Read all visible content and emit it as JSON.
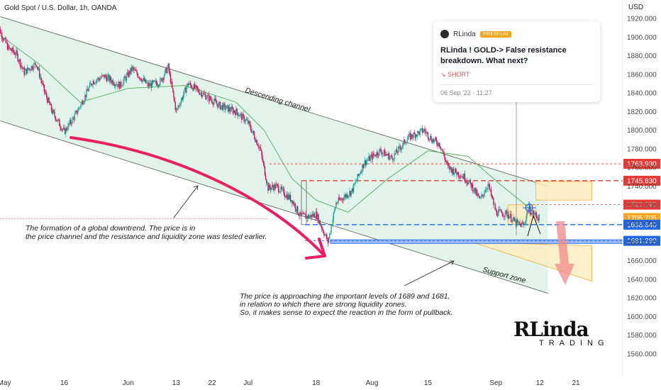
{
  "header": {
    "title": "Gold Spot / U.S. Dollar, 1h, OANDA",
    "currency": "USD"
  },
  "idea_card": {
    "author": "RLinda",
    "badge": "PREMIUM",
    "title": "RLinda ! GOLD-> False resistance breakdown. What next?",
    "signal": "↘ SHORT",
    "timestamp": "06 Sep '22 · 11:27"
  },
  "logo": {
    "main": "RLinda",
    "sub": "TRADING"
  },
  "colors": {
    "up": "#26a69a",
    "down": "#c2185b",
    "channel_fill": "#c8ead9",
    "ma": "#4caf50",
    "red_level": "#e53935",
    "blue_level": "#1e66e6",
    "arrow": "#e91e63",
    "orange": "#f5a623"
  },
  "chart_data": {
    "type": "candlestick",
    "symbol": "XAUUSD",
    "timeframe": "1h",
    "ylim": [
      1555,
      1930
    ],
    "y_ticks": [
      1920,
      1900,
      1880,
      1860,
      1840,
      1820,
      1800,
      1780,
      1760,
      1740,
      1720,
      1700,
      1680,
      1660,
      1640,
      1620,
      1600,
      1580,
      1560
    ],
    "x_ticks": [
      {
        "label": "May",
        "date": "2022-05-01"
      },
      {
        "label": "16",
        "date": "2022-05-16"
      },
      {
        "label": "Jun",
        "date": "2022-06-01"
      },
      {
        "label": "13",
        "date": "2022-06-13"
      },
      {
        "label": "22",
        "date": "2022-06-22"
      },
      {
        "label": "Jul",
        "date": "2022-07-01"
      },
      {
        "label": "18",
        "date": "2022-07-18"
      },
      {
        "label": "Aug",
        "date": "2022-08-01"
      },
      {
        "label": "15",
        "date": "2022-08-15"
      },
      {
        "label": "Sep",
        "date": "2022-09-01"
      },
      {
        "label": "12",
        "date": "2022-09-12"
      },
      {
        "label": "21",
        "date": "2022-09-21"
      }
    ],
    "price_path": [
      {
        "date": "2022-04-29",
        "price": 1915
      },
      {
        "date": "2022-05-02",
        "price": 1888
      },
      {
        "date": "2022-05-04",
        "price": 1882
      },
      {
        "date": "2022-05-06",
        "price": 1862
      },
      {
        "date": "2022-05-09",
        "price": 1872
      },
      {
        "date": "2022-05-11",
        "price": 1842
      },
      {
        "date": "2022-05-13",
        "price": 1820
      },
      {
        "date": "2022-05-16",
        "price": 1798
      },
      {
        "date": "2022-05-19",
        "price": 1818
      },
      {
        "date": "2022-05-23",
        "price": 1852
      },
      {
        "date": "2022-05-26",
        "price": 1858
      },
      {
        "date": "2022-05-30",
        "price": 1848
      },
      {
        "date": "2022-06-02",
        "price": 1866
      },
      {
        "date": "2022-06-06",
        "price": 1848
      },
      {
        "date": "2022-06-09",
        "price": 1852
      },
      {
        "date": "2022-06-11",
        "price": 1868
      },
      {
        "date": "2022-06-13",
        "price": 1820
      },
      {
        "date": "2022-06-16",
        "price": 1850
      },
      {
        "date": "2022-06-20",
        "price": 1838
      },
      {
        "date": "2022-06-24",
        "price": 1826
      },
      {
        "date": "2022-06-28",
        "price": 1820
      },
      {
        "date": "2022-07-01",
        "price": 1808
      },
      {
        "date": "2022-07-04",
        "price": 1780
      },
      {
        "date": "2022-07-06",
        "price": 1738
      },
      {
        "date": "2022-07-08",
        "price": 1740
      },
      {
        "date": "2022-07-12",
        "price": 1725
      },
      {
        "date": "2022-07-14",
        "price": 1708
      },
      {
        "date": "2022-07-16",
        "price": 1707
      },
      {
        "date": "2022-07-18",
        "price": 1710
      },
      {
        "date": "2022-07-21",
        "price": 1680
      },
      {
        "date": "2022-07-23",
        "price": 1722
      },
      {
        "date": "2022-07-27",
        "price": 1735
      },
      {
        "date": "2022-07-30",
        "price": 1765
      },
      {
        "date": "2022-08-03",
        "price": 1778
      },
      {
        "date": "2022-08-06",
        "price": 1770
      },
      {
        "date": "2022-08-10",
        "price": 1792
      },
      {
        "date": "2022-08-14",
        "price": 1800
      },
      {
        "date": "2022-08-16",
        "price": 1790
      },
      {
        "date": "2022-08-18",
        "price": 1785
      },
      {
        "date": "2022-08-20",
        "price": 1760
      },
      {
        "date": "2022-08-24",
        "price": 1750
      },
      {
        "date": "2022-08-26",
        "price": 1740
      },
      {
        "date": "2022-08-28",
        "price": 1725
      },
      {
        "date": "2022-08-30",
        "price": 1742
      },
      {
        "date": "2022-09-01",
        "price": 1712
      },
      {
        "date": "2022-09-04",
        "price": 1710
      },
      {
        "date": "2022-09-06",
        "price": 1700
      },
      {
        "date": "2022-09-08",
        "price": 1698
      },
      {
        "date": "2022-09-09",
        "price": 1716
      },
      {
        "date": "2022-09-10",
        "price": 1712
      },
      {
        "date": "2022-09-12",
        "price": 1705
      }
    ],
    "moving_average": [
      {
        "date": "2022-04-29",
        "price": 1905
      },
      {
        "date": "2022-05-10",
        "price": 1870
      },
      {
        "date": "2022-05-20",
        "price": 1830
      },
      {
        "date": "2022-06-01",
        "price": 1845
      },
      {
        "date": "2022-06-15",
        "price": 1848
      },
      {
        "date": "2022-06-28",
        "price": 1830
      },
      {
        "date": "2022-07-05",
        "price": 1800
      },
      {
        "date": "2022-07-12",
        "price": 1748
      },
      {
        "date": "2022-07-18",
        "price": 1725
      },
      {
        "date": "2022-07-26",
        "price": 1712
      },
      {
        "date": "2022-08-05",
        "price": 1748
      },
      {
        "date": "2022-08-15",
        "price": 1778
      },
      {
        "date": "2022-08-25",
        "price": 1772
      },
      {
        "date": "2022-09-02",
        "price": 1742
      },
      {
        "date": "2022-09-09",
        "price": 1718
      }
    ],
    "channel": {
      "label": "Descending channel",
      "upper": [
        {
          "date": "2022-04-30",
          "price": 1922
        },
        {
          "date": "2022-09-14",
          "price": 1740
        }
      ],
      "lower": [
        {
          "date": "2022-04-30",
          "price": 1810
        },
        {
          "date": "2022-09-14",
          "price": 1625
        }
      ]
    },
    "price_levels": [
      {
        "price": 1763.93,
        "label": "1763.930",
        "style": "dotted",
        "color": "#e53935"
      },
      {
        "price": 1745.83,
        "label": "1745.830",
        "style": "dashed",
        "color": "#e53935"
      },
      {
        "price": 1720.09,
        "label": "1720.090",
        "style": "dotted",
        "color": "#e53935"
      },
      {
        "price": 1705.705,
        "label": "1705.705",
        "style": "zone",
        "color": "#f5a623"
      },
      {
        "price": 1698.64,
        "label": "1698.640",
        "style": "dashed",
        "color": "#1e66e6"
      },
      {
        "price": 1681.28,
        "label": "1681.280",
        "style": "dotted",
        "color": "#1e66e6"
      }
    ],
    "zones": [
      {
        "name": "resistance-zone",
        "from": "2022-09-04",
        "to": "2022-09-11",
        "low": 1699,
        "high": 1720
      },
      {
        "name": "resistance-zone-projection",
        "from": "2022-09-11",
        "to": "2022-09-25",
        "low": 1725,
        "high": 1745
      },
      {
        "name": "support-zone",
        "from": "2022-08-26",
        "to": "2022-09-25",
        "low": 1640,
        "high": 1680,
        "label": "Support zone"
      }
    ],
    "annotations": [
      {
        "id": "note1",
        "lines": [
          "The formation of a global downtrend. The price is in",
          "the price channel and the resistance and liquidity zone was tested earlier."
        ]
      },
      {
        "id": "note2",
        "lines": [
          "The price is approaching the important levels of 1689 and 1681,",
          "in relation to which there are strong liquidity zones.",
          "So, it makes sense to expect the reaction in the form of pullback."
        ]
      }
    ]
  }
}
